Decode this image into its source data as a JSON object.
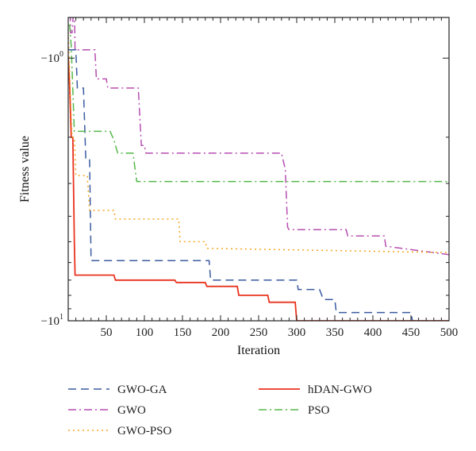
{
  "chart_data": {
    "type": "line",
    "title": "",
    "xlabel": "Iteration",
    "ylabel": "Fitness value",
    "xlim": [
      0,
      500
    ],
    "ylim": [
      -10,
      -0.7
    ],
    "yscale": "log (negative values, |y|)",
    "x_ticks": [
      50,
      100,
      150,
      200,
      250,
      300,
      350,
      400,
      450,
      500
    ],
    "x_tick_labels": [
      "50",
      "100",
      "150",
      "200",
      "250",
      "300",
      "350",
      "400",
      "450",
      "500"
    ],
    "y_ticks": [
      -1,
      -10
    ],
    "y_tick_labels": [
      {
        "base": "−10",
        "exp": "0"
      },
      {
        "base": "−10",
        "exp": "1"
      }
    ],
    "grid": false,
    "legend_position": "bottom",
    "series": [
      {
        "name": "GWO-GA",
        "color": "#3a5ba0",
        "dash": "dashed",
        "x": [
          0,
          1,
          10,
          12,
          20,
          23,
          28,
          30,
          185,
          187,
          300,
          302,
          330,
          335,
          350,
          352,
          450,
          452,
          500
        ],
        "y": [
          -0.93,
          -0.93,
          -0.93,
          -1.3,
          -1.3,
          -2.4,
          -2.4,
          -5.9,
          -5.9,
          -7.0,
          -7.0,
          -7.6,
          -7.6,
          -8.3,
          -8.3,
          -9.3,
          -9.3,
          -10.0,
          -10.0
        ]
      },
      {
        "name": "hDAN-GWO",
        "color": "#e8321e",
        "dash": "solid",
        "x": [
          0,
          2,
          4,
          6,
          8,
          9,
          60,
          62,
          140,
          142,
          180,
          182,
          222,
          224,
          262,
          264,
          298,
          300,
          500
        ],
        "y": [
          -0.98,
          -1.3,
          -2.0,
          -2.0,
          -5.0,
          -6.7,
          -6.7,
          -7.0,
          -7.0,
          -7.15,
          -7.15,
          -7.4,
          -7.4,
          -8.0,
          -8.0,
          -8.5,
          -8.5,
          -10.0,
          -10.0
        ]
      },
      {
        "name": "GWO",
        "color": "#b64fb0",
        "dash": "dashdot",
        "x": [
          0,
          2,
          3,
          5,
          8,
          9,
          35,
          37,
          50,
          52,
          92,
          96,
          100,
          102,
          280,
          285,
          288,
          290,
          365,
          367,
          415,
          417,
          500
        ],
        "y": [
          -0.45,
          -0.45,
          -0.8,
          -0.8,
          -0.6,
          -0.93,
          -0.93,
          -1.2,
          -1.2,
          -1.3,
          -1.3,
          -2.15,
          -2.15,
          -2.3,
          -2.3,
          -2.65,
          -4.4,
          -4.5,
          -4.5,
          -4.75,
          -4.75,
          -5.2,
          -5.6
        ]
      },
      {
        "name": "PSO",
        "color": "#55b84a",
        "dash": "dashdot",
        "x": [
          0,
          2,
          4,
          8,
          10,
          55,
          60,
          65,
          85,
          90,
          500
        ],
        "y": [
          -0.75,
          -0.75,
          -0.9,
          -1.9,
          -1.9,
          -1.9,
          -2.05,
          -2.3,
          -2.3,
          -2.95,
          -2.95
        ]
      },
      {
        "name": "GWO-PSO",
        "color": "#f5a623",
        "dash": "dotted",
        "x": [
          0,
          5,
          8,
          10,
          25,
          28,
          60,
          62,
          145,
          147,
          180,
          182,
          500
        ],
        "y": [
          -0.8,
          -2.0,
          -2.0,
          -2.8,
          -2.8,
          -3.8,
          -3.8,
          -4.1,
          -4.1,
          -5.0,
          -5.0,
          -5.3,
          -5.5
        ]
      }
    ]
  },
  "legend": {
    "items": [
      {
        "name": "GWO-GA",
        "color": "#3a5ba0",
        "dash": "dashed"
      },
      {
        "name": "hDAN-GWO",
        "color": "#e8321e",
        "dash": "solid"
      },
      {
        "name": "GWO",
        "color": "#b64fb0",
        "dash": "dashdot"
      },
      {
        "name": "PSO",
        "color": "#55b84a",
        "dash": "dashdot"
      },
      {
        "name": "GWO-PSO",
        "color": "#f5a623",
        "dash": "dotted"
      }
    ]
  }
}
